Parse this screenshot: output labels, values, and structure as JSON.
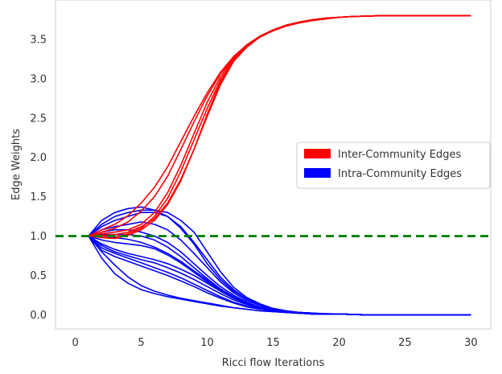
{
  "chart_data": {
    "type": "line",
    "xlabel": "Ricci flow Iterations",
    "ylabel": "Edge Weights",
    "xlim": [
      -1.5,
      31.5
    ],
    "ylim": [
      -0.18,
      4.0
    ],
    "xticks": [
      0,
      5,
      10,
      15,
      20,
      25,
      30
    ],
    "yticks": [
      0.0,
      0.5,
      1.0,
      1.5,
      2.0,
      2.5,
      3.0,
      3.5
    ],
    "ytick_labels": [
      "0.0",
      "0.5",
      "1.0",
      "1.5",
      "2.0",
      "2.5",
      "3.0",
      "3.5"
    ],
    "grid": false,
    "legend_position": "center-right",
    "legend": [
      {
        "label": "Inter-Community Edges",
        "color": "#ff0000"
      },
      {
        "label": "Intra-Community Edges",
        "color": "#0000ff"
      }
    ],
    "reference_line": {
      "y": 1.0,
      "color": "#008000",
      "style": "dashed"
    },
    "x": [
      1,
      2,
      3,
      4,
      5,
      6,
      7,
      8,
      9,
      10,
      11,
      12,
      13,
      14,
      15,
      16,
      17,
      18,
      19,
      20,
      21,
      22,
      23,
      24,
      25,
      26,
      27,
      28,
      29,
      30
    ],
    "series": [
      {
        "group": "inter",
        "color": "#ff0000",
        "values": [
          1.0,
          1.08,
          1.15,
          1.26,
          1.42,
          1.62,
          1.88,
          2.2,
          2.52,
          2.82,
          3.08,
          3.28,
          3.43,
          3.54,
          3.62,
          3.68,
          3.72,
          3.75,
          3.77,
          3.78,
          3.79,
          3.795,
          3.8,
          3.8,
          3.8,
          3.8,
          3.8,
          3.8,
          3.8,
          3.8
        ]
      },
      {
        "group": "inter",
        "color": "#ff0000",
        "values": [
          1.0,
          1.05,
          1.1,
          1.18,
          1.32,
          1.5,
          1.76,
          2.1,
          2.45,
          2.78,
          3.06,
          3.27,
          3.43,
          3.54,
          3.62,
          3.68,
          3.72,
          3.75,
          3.77,
          3.78,
          3.79,
          3.795,
          3.8,
          3.8,
          3.8,
          3.8,
          3.8,
          3.8,
          3.8,
          3.8
        ]
      },
      {
        "group": "inter",
        "color": "#ff0000",
        "values": [
          1.0,
          1.03,
          1.05,
          1.08,
          1.15,
          1.3,
          1.55,
          1.9,
          2.3,
          2.7,
          3.02,
          3.26,
          3.42,
          3.54,
          3.62,
          3.68,
          3.72,
          3.75,
          3.77,
          3.78,
          3.79,
          3.795,
          3.8,
          3.8,
          3.8,
          3.8,
          3.8,
          3.8,
          3.8,
          3.8
        ]
      },
      {
        "group": "inter",
        "color": "#ff0000",
        "values": [
          1.0,
          1.0,
          0.99,
          1.03,
          1.1,
          1.25,
          1.48,
          1.82,
          2.22,
          2.62,
          2.98,
          3.24,
          3.41,
          3.53,
          3.61,
          3.67,
          3.71,
          3.74,
          3.76,
          3.78,
          3.79,
          3.795,
          3.8,
          3.8,
          3.8,
          3.8,
          3.8,
          3.8,
          3.8,
          3.8
        ]
      },
      {
        "group": "inter",
        "color": "#ff0000",
        "values": [
          1.0,
          1.01,
          1.02,
          1.05,
          1.12,
          1.22,
          1.42,
          1.72,
          2.1,
          2.52,
          2.92,
          3.22,
          3.4,
          3.53,
          3.61,
          3.67,
          3.71,
          3.74,
          3.76,
          3.78,
          3.79,
          3.795,
          3.8,
          3.8,
          3.8,
          3.8,
          3.8,
          3.8,
          3.8,
          3.8
        ]
      },
      {
        "group": "inter",
        "color": "#ff0000",
        "values": [
          1.0,
          0.98,
          0.97,
          1.01,
          1.08,
          1.2,
          1.4,
          1.7,
          2.1,
          2.55,
          2.95,
          3.24,
          3.42,
          3.54,
          3.62,
          3.68,
          3.72,
          3.75,
          3.77,
          3.78,
          3.79,
          3.795,
          3.8,
          3.8,
          3.8,
          3.8,
          3.8,
          3.8,
          3.8,
          3.8
        ]
      },
      {
        "group": "intra",
        "color": "#0000ff",
        "values": [
          1.0,
          1.2,
          1.3,
          1.35,
          1.37,
          1.33,
          1.25,
          1.1,
          0.9,
          0.65,
          0.45,
          0.3,
          0.2,
          0.13,
          0.08,
          0.05,
          0.03,
          0.02,
          0.015,
          0.01,
          0.005,
          0.0,
          0.0,
          0.0,
          0.0,
          0.0,
          0.0,
          0.0,
          0.0,
          0.0
        ]
      },
      {
        "group": "intra",
        "color": "#0000ff",
        "values": [
          1.0,
          1.15,
          1.25,
          1.3,
          1.33,
          1.33,
          1.3,
          1.2,
          1.05,
          0.8,
          0.55,
          0.35,
          0.22,
          0.14,
          0.08,
          0.05,
          0.03,
          0.02,
          0.01,
          0.01,
          0.005,
          0.0,
          0.0,
          0.0,
          0.0,
          0.0,
          0.0,
          0.0,
          0.0,
          0.0
        ]
      },
      {
        "group": "intra",
        "color": "#0000ff",
        "values": [
          1.0,
          1.12,
          1.2,
          1.25,
          1.3,
          1.3,
          1.25,
          1.12,
          0.92,
          0.7,
          0.48,
          0.32,
          0.2,
          0.13,
          0.08,
          0.05,
          0.03,
          0.02,
          0.01,
          0.01,
          0.005,
          0.0,
          0.0,
          0.0,
          0.0,
          0.0,
          0.0,
          0.0,
          0.0,
          0.0
        ]
      },
      {
        "group": "intra",
        "color": "#0000ff",
        "values": [
          1.0,
          1.08,
          1.12,
          1.15,
          1.18,
          1.15,
          1.08,
          0.95,
          0.78,
          0.6,
          0.42,
          0.28,
          0.18,
          0.12,
          0.07,
          0.04,
          0.03,
          0.02,
          0.01,
          0.01,
          0.005,
          0.0,
          0.0,
          0.0,
          0.0,
          0.0,
          0.0,
          0.0,
          0.0,
          0.0
        ]
      },
      {
        "group": "intra",
        "color": "#0000ff",
        "values": [
          1.0,
          1.05,
          1.08,
          1.08,
          1.05,
          1.0,
          0.92,
          0.8,
          0.65,
          0.5,
          0.36,
          0.25,
          0.16,
          0.1,
          0.06,
          0.04,
          0.03,
          0.02,
          0.01,
          0.01,
          0.005,
          0.0,
          0.0,
          0.0,
          0.0,
          0.0,
          0.0,
          0.0,
          0.0,
          0.0
        ]
      },
      {
        "group": "intra",
        "color": "#0000ff",
        "values": [
          1.0,
          1.02,
          1.02,
          1.02,
          1.0,
          0.95,
          0.86,
          0.74,
          0.6,
          0.46,
          0.33,
          0.23,
          0.15,
          0.1,
          0.06,
          0.04,
          0.03,
          0.02,
          0.01,
          0.01,
          0.005,
          0.0,
          0.0,
          0.0,
          0.0,
          0.0,
          0.0,
          0.0,
          0.0,
          0.0
        ]
      },
      {
        "group": "intra",
        "color": "#0000ff",
        "values": [
          1.0,
          1.0,
          0.98,
          0.96,
          0.92,
          0.86,
          0.78,
          0.68,
          0.56,
          0.44,
          0.32,
          0.22,
          0.15,
          0.1,
          0.06,
          0.04,
          0.03,
          0.02,
          0.01,
          0.01,
          0.005,
          0.0,
          0.0,
          0.0,
          0.0,
          0.0,
          0.0,
          0.0,
          0.0,
          0.0
        ]
      },
      {
        "group": "intra",
        "color": "#0000ff",
        "values": [
          1.0,
          0.95,
          0.92,
          0.9,
          0.88,
          0.84,
          0.76,
          0.66,
          0.54,
          0.42,
          0.31,
          0.22,
          0.14,
          0.09,
          0.06,
          0.04,
          0.02,
          0.02,
          0.01,
          0.01,
          0.005,
          0.0,
          0.0,
          0.0,
          0.0,
          0.0,
          0.0,
          0.0,
          0.0,
          0.0
        ]
      },
      {
        "group": "intra",
        "color": "#0000ff",
        "values": [
          1.0,
          0.9,
          0.83,
          0.78,
          0.74,
          0.7,
          0.65,
          0.58,
          0.5,
          0.4,
          0.3,
          0.21,
          0.14,
          0.09,
          0.06,
          0.04,
          0.02,
          0.02,
          0.01,
          0.01,
          0.005,
          0.0,
          0.0,
          0.0,
          0.0,
          0.0,
          0.0,
          0.0,
          0.0,
          0.0
        ]
      },
      {
        "group": "intra",
        "color": "#0000ff",
        "values": [
          1.0,
          0.88,
          0.8,
          0.75,
          0.7,
          0.66,
          0.6,
          0.53,
          0.45,
          0.36,
          0.27,
          0.19,
          0.13,
          0.09,
          0.06,
          0.04,
          0.02,
          0.02,
          0.01,
          0.01,
          0.005,
          0.0,
          0.0,
          0.0,
          0.0,
          0.0,
          0.0,
          0.0,
          0.0,
          0.0
        ]
      },
      {
        "group": "intra",
        "color": "#0000ff",
        "values": [
          1.0,
          0.85,
          0.78,
          0.72,
          0.66,
          0.6,
          0.54,
          0.47,
          0.39,
          0.31,
          0.23,
          0.16,
          0.11,
          0.08,
          0.05,
          0.03,
          0.02,
          0.01,
          0.01,
          0.01,
          0.005,
          0.0,
          0.0,
          0.0,
          0.0,
          0.0,
          0.0,
          0.0,
          0.0,
          0.0
        ]
      },
      {
        "group": "intra",
        "color": "#0000ff",
        "values": [
          1.0,
          0.82,
          0.74,
          0.68,
          0.62,
          0.56,
          0.5,
          0.43,
          0.36,
          0.28,
          0.21,
          0.15,
          0.1,
          0.07,
          0.05,
          0.03,
          0.02,
          0.01,
          0.01,
          0.01,
          0.005,
          0.0,
          0.0,
          0.0,
          0.0,
          0.0,
          0.0,
          0.0,
          0.0,
          0.0
        ]
      },
      {
        "group": "intra",
        "color": "#0000ff",
        "values": [
          1.0,
          0.72,
          0.52,
          0.4,
          0.32,
          0.27,
          0.23,
          0.2,
          0.17,
          0.14,
          0.11,
          0.09,
          0.07,
          0.05,
          0.04,
          0.03,
          0.02,
          0.01,
          0.01,
          0.01,
          0.005,
          0.0,
          0.0,
          0.0,
          0.0,
          0.0,
          0.0,
          0.0,
          0.0,
          0.0
        ]
      },
      {
        "group": "intra",
        "color": "#0000ff",
        "values": [
          1.0,
          0.8,
          0.63,
          0.48,
          0.37,
          0.3,
          0.25,
          0.21,
          0.18,
          0.15,
          0.12,
          0.09,
          0.07,
          0.05,
          0.04,
          0.03,
          0.02,
          0.01,
          0.01,
          0.01,
          0.005,
          0.0,
          0.0,
          0.0,
          0.0,
          0.0,
          0.0,
          0.0,
          0.0,
          0.0
        ]
      }
    ]
  }
}
